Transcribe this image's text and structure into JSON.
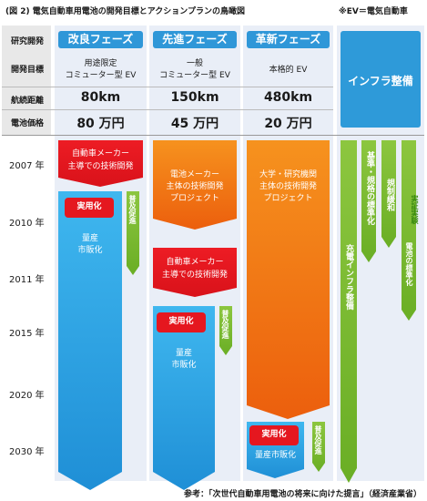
{
  "title": "(図 2)  電気自動車用電池の開発目標とアクションプランの鳥瞰図",
  "note": "※EV＝電気自動車",
  "row_labels": {
    "research": "研究開発",
    "target": "開発目標",
    "range": "航続距離",
    "price": "電池価格"
  },
  "phases": [
    {
      "name": "改良フェーズ",
      "target_line1": "用途限定",
      "target_line2": "コミューター型 EV",
      "range": "80km",
      "price": "80 万円"
    },
    {
      "name": "先進フェーズ",
      "target_line1": "一般",
      "target_line2": "コミューター型 EV",
      "range": "150km",
      "price": "45 万円"
    },
    {
      "name": "革新フェーズ",
      "target_line1": "本格的 EV",
      "target_line2": "",
      "range": "480km",
      "price": "20 万円"
    }
  ],
  "infra_header": "インフラ整備",
  "years": [
    "2007 年",
    "2010 年",
    "2011 年",
    "2015 年",
    "2020 年",
    "2030 年"
  ],
  "col1": {
    "lead_line1": "自動車メーカー",
    "lead_line2": "主導での技術開発",
    "practical": "実用化",
    "mass_line1": "量産",
    "mass_line2": "市販化",
    "spread": "普及促進"
  },
  "col2": {
    "lead_line1": "電池メーカー",
    "lead_line2": "主体の技術開発",
    "lead_line3": "プロジェクト",
    "car_line1": "自動車メーカー",
    "car_line2": "主導での技術開発",
    "practical": "実用化",
    "mass_line1": "量産",
    "mass_line2": "市販化",
    "spread": "普及促進"
  },
  "col3": {
    "lead_line1": "大学・研究機関",
    "lead_line2": "主体の技術開発",
    "lead_line3": "プロジェクト",
    "practical": "実用化",
    "mass": "量産市販化",
    "spread": "普及促進"
  },
  "infra": {
    "charging": "充電インフラ整備",
    "standard": "基準・規格の標準化",
    "deregulation": "規制緩和",
    "demo": "実証実験",
    "battery_std": "電池の標準化"
  },
  "source": "参考：「次世代自動車用電池の将来に向けた提言」（経済産業省）",
  "colors": {
    "phase_blue": "#2f97d8",
    "navy_bg": "#cfe0f1",
    "arrow_blue": "#30a7e6",
    "arrow_orange": "#f07d10",
    "box_red": "#e5171f",
    "arrow_green": "#7dbf2c",
    "infra_blue": "#2e9ad9"
  }
}
